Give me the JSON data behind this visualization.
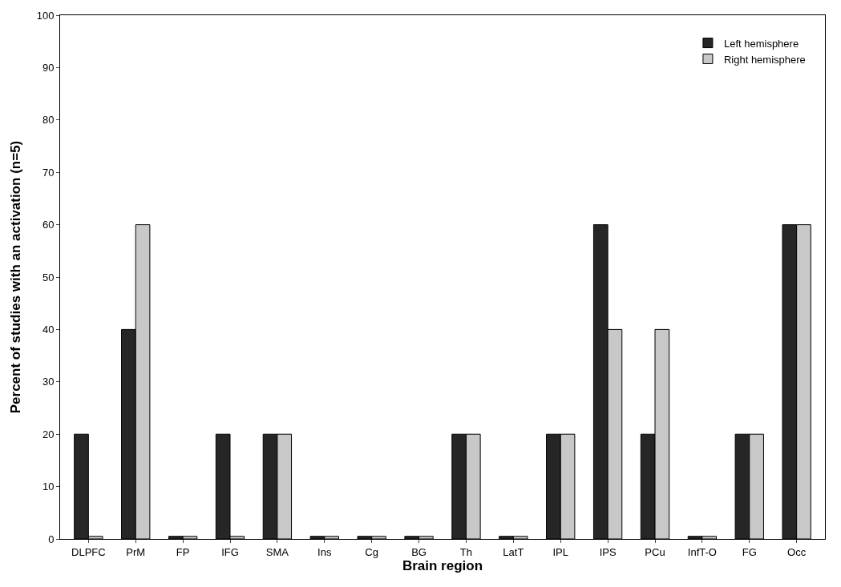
{
  "chart_data": {
    "type": "bar",
    "xlabel": "Brain region",
    "ylabel": "Percent of studies with an activation (n=5)",
    "categories": [
      "DLPFC",
      "PrM",
      "FP",
      "IFG",
      "SMA",
      "Ins",
      "Cg",
      "BG",
      "Th",
      "LatT",
      "IPL",
      "IPS",
      "PCu",
      "InfT-O",
      "FG",
      "Occ"
    ],
    "series": [
      {
        "name": "Left hemisphere",
        "color": "#262626",
        "values": [
          20,
          40,
          0.5,
          20,
          20,
          0.5,
          0.5,
          0.5,
          20,
          0.5,
          20,
          60,
          20,
          0.5,
          20,
          60
        ]
      },
      {
        "name": "Right hemisphere",
        "color": "#c8c8c8",
        "values": [
          0.5,
          60,
          0.5,
          0.5,
          20,
          0.5,
          0.5,
          0.5,
          20,
          0.5,
          20,
          40,
          40,
          0.5,
          20,
          60
        ]
      }
    ],
    "ylim": [
      0,
      100
    ],
    "yticks": [
      0,
      10,
      20,
      30,
      40,
      50,
      60,
      70,
      80,
      90,
      100
    ],
    "legend": "top right"
  }
}
